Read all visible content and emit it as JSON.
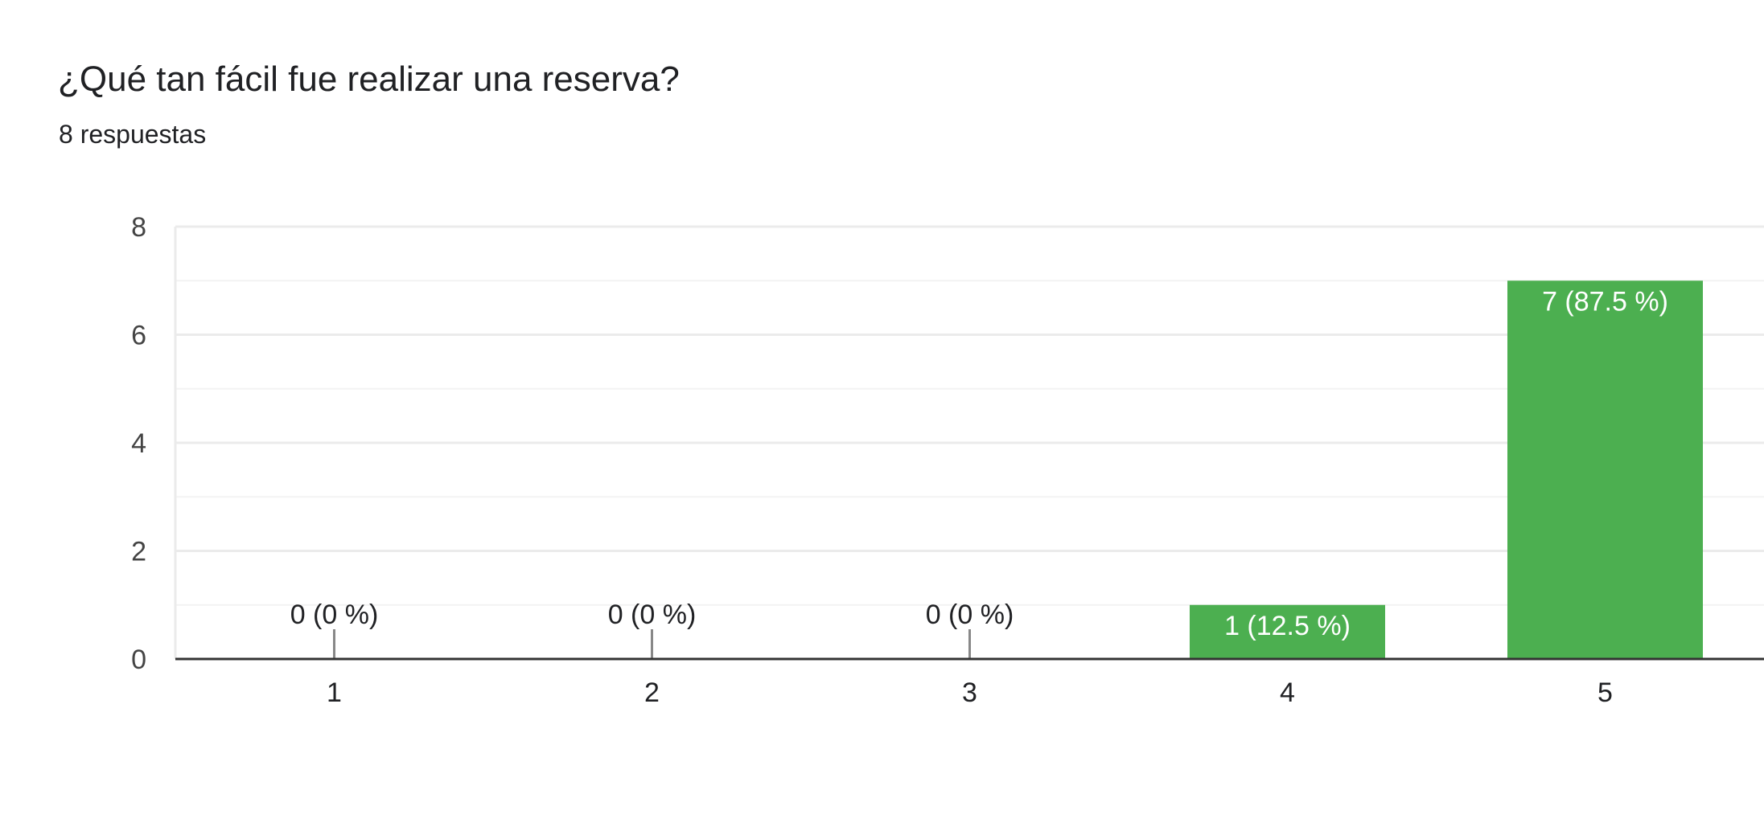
{
  "question": {
    "title": "¿Qué tan fácil fue realizar una reserva?",
    "responses": "8 respuestas"
  },
  "colors": {
    "bar": "#4caf50",
    "label_outside": "#202124",
    "label_inside": "#ffffff",
    "axis": "#333333",
    "grid": "#ebebeb",
    "grid_minor": "#f3f3f3",
    "tick_text": "#444444"
  },
  "chart_data": {
    "type": "bar",
    "title": "¿Qué tan fácil fue realizar una reserva?",
    "categories": [
      "1",
      "2",
      "3",
      "4",
      "5"
    ],
    "values": [
      0,
      0,
      0,
      1,
      7
    ],
    "data_labels": [
      "0 (0 %)",
      "0 (0 %)",
      "0 (0 %)",
      "1 (12.5 %)",
      "7 (87.5 %)"
    ],
    "y_ticks": [
      "0",
      "2",
      "4",
      "6",
      "8"
    ],
    "ylim": [
      0,
      8
    ],
    "xlabel": "",
    "ylabel": "",
    "grid": true,
    "legend": "none"
  }
}
